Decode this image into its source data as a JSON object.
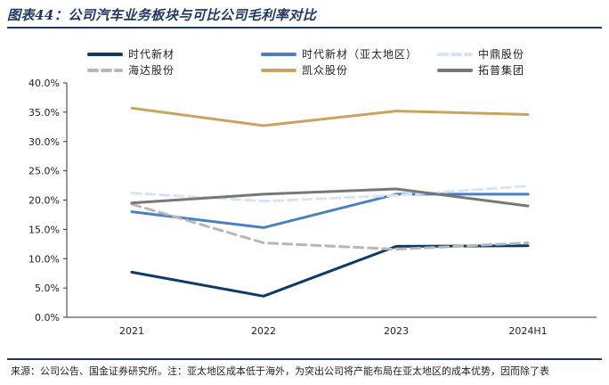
{
  "header": {
    "title": "图表44：公司汽车业务板块与可比公司毛利率对比"
  },
  "footer": {
    "source": "来源：公司公告、国金证券研究所。注：亚太地区成本低于海外，为突出公司将产能布局在亚太地区的成本优势，因而除了表"
  },
  "chart_data": {
    "type": "line",
    "categories": [
      "2021",
      "2022",
      "2023",
      "2024H1"
    ],
    "ylim": [
      0,
      40
    ],
    "ytick_step": 5,
    "ytick_labels": [
      "0.0%",
      "5.0%",
      "10.0%",
      "15.0%",
      "20.0%",
      "25.0%",
      "30.0%",
      "35.0%",
      "40.0%"
    ],
    "grid": false,
    "legend_position": "top",
    "series": [
      {
        "name": "时代新材",
        "values": [
          7.7,
          3.6,
          12.1,
          12.2
        ],
        "color": "#0d3b66",
        "dash": "solid",
        "width": 3
      },
      {
        "name": "时代新材（亚太地区）",
        "values": [
          18.0,
          15.3,
          21.0,
          21.0
        ],
        "color": "#4a7fc1",
        "dash": "solid",
        "width": 3
      },
      {
        "name": "中鼎股份",
        "values": [
          21.2,
          19.8,
          20.8,
          22.4
        ],
        "color": "#d6e4f5",
        "dash": "dashed",
        "width": 3
      },
      {
        "name": "海达股份",
        "values": [
          19.3,
          12.7,
          11.6,
          12.7
        ],
        "color": "#b7b7b7",
        "dash": "dashed",
        "width": 3
      },
      {
        "name": "凯众股份",
        "values": [
          35.7,
          32.7,
          35.2,
          34.6
        ],
        "color": "#c9a45c",
        "dash": "solid",
        "width": 3
      },
      {
        "name": "拓普集团",
        "values": [
          19.5,
          21.0,
          21.9,
          19.0
        ],
        "color": "#777777",
        "dash": "solid",
        "width": 3
      }
    ]
  }
}
